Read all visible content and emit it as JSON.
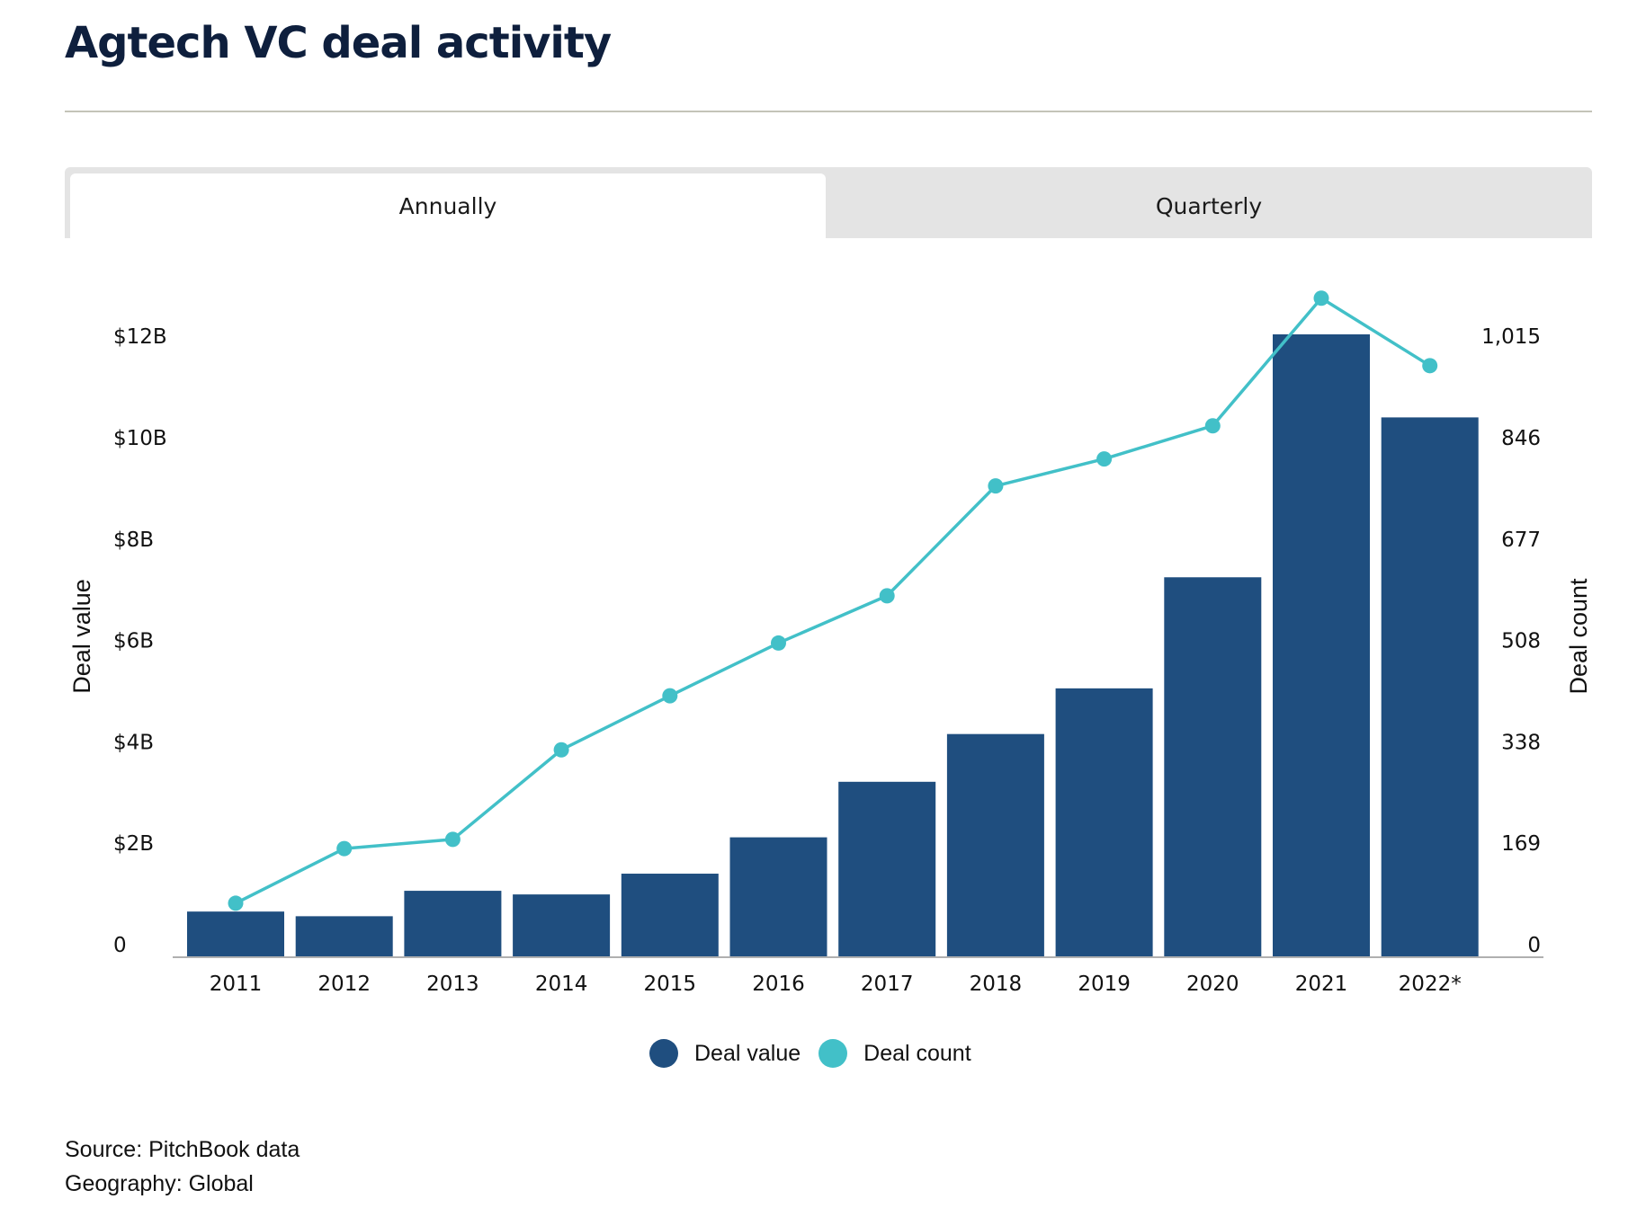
{
  "title": "Agtech VC deal activity",
  "tabs": [
    {
      "label": "Annually",
      "active": true
    },
    {
      "label": "Quarterly",
      "active": false
    }
  ],
  "colors": {
    "deal_value": "#1f4e7f",
    "deal_count": "#42c0c8",
    "tab_inactive_bg": "#e4e4e4",
    "title": "#0e1f3d"
  },
  "legend": [
    {
      "label": "Deal value",
      "color": "#1f4e7f"
    },
    {
      "label": "Deal count",
      "color": "#42c0c8"
    }
  ],
  "footer": {
    "source": "Source: PitchBook data",
    "geography": "Geography: Global"
  },
  "chart_data": {
    "type": "bar",
    "categories": [
      "2011",
      "2012",
      "2013",
      "2014",
      "2015",
      "2016",
      "2017",
      "2018",
      "2019",
      "2020",
      "2021",
      "2022*"
    ],
    "series": [
      {
        "name": "Deal value",
        "type": "bar",
        "axis": "left",
        "values": [
          0.88,
          0.79,
          1.28,
          1.21,
          1.61,
          2.31,
          3.38,
          4.3,
          5.18,
          7.32,
          12.0,
          10.4
        ]
      },
      {
        "name": "Deal count",
        "type": "line",
        "axis": "right",
        "values": [
          88,
          177,
          192,
          338,
          426,
          512,
          589,
          768,
          812,
          866,
          1074,
          964
        ]
      }
    ],
    "ylabel_left": "Deal value",
    "ylabel_right": "Deal count",
    "yticks_left": [
      "0",
      "$2B",
      "$4B",
      "$6B",
      "$8B",
      "$10B",
      "$12B"
    ],
    "yticks_right": [
      "0",
      "169",
      "338",
      "508",
      "677",
      "846",
      "1,015"
    ],
    "ylim_left": [
      0,
      12.35
    ],
    "ylim_right": [
      0,
      1045
    ],
    "grid": false,
    "legend_position": "bottom-center"
  }
}
